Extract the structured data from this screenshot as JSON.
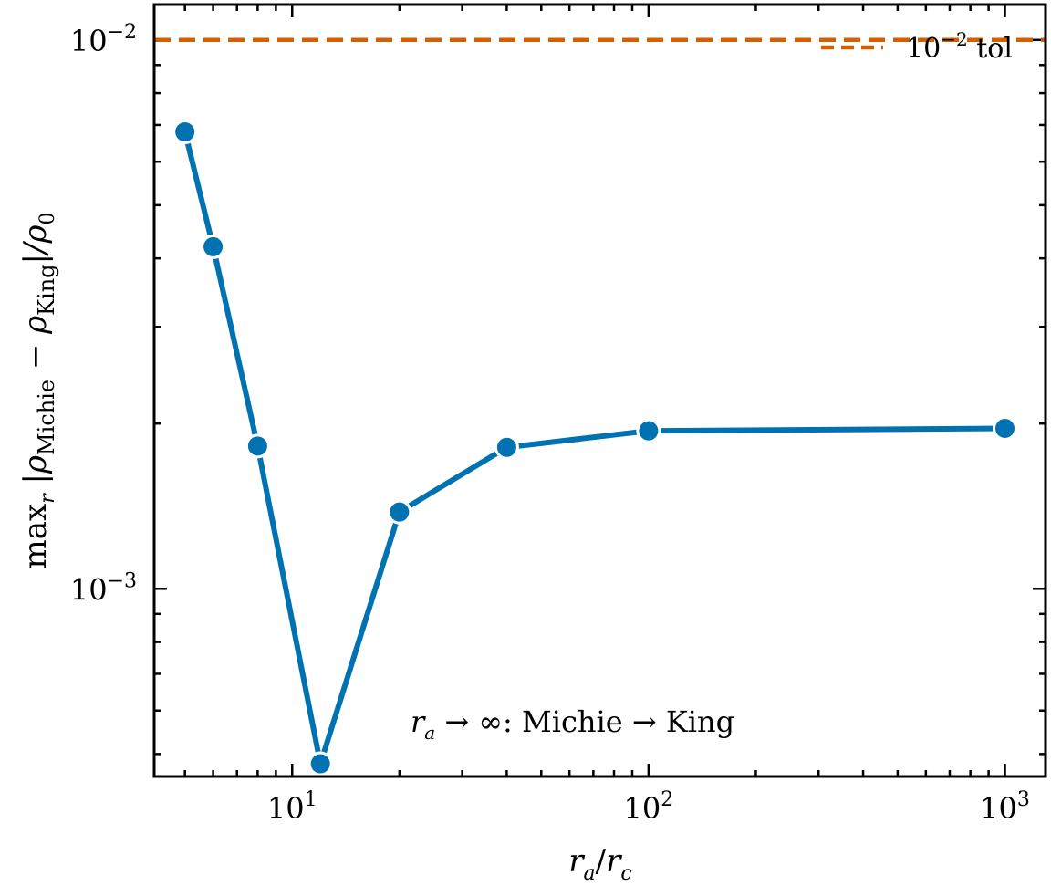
{
  "chart_data": {
    "type": "line",
    "xscale": "log",
    "yscale": "log",
    "xlim": [
      4.1,
      1300
    ],
    "ylim": [
      0.000455,
      0.0116
    ],
    "xlabel": "r_a / r_c",
    "ylabel": "max_r |ρ_Michie − ρ_King| / ρ_0",
    "xticks": [
      {
        "base": "10",
        "exp": "1"
      },
      {
        "base": "10",
        "exp": "2"
      },
      {
        "base": "10",
        "exp": "3"
      }
    ],
    "yticks": [
      {
        "base": "10",
        "exp": "−3"
      },
      {
        "base": "10",
        "exp": "−2"
      }
    ],
    "series": [
      {
        "x": [
          5,
          6,
          8,
          12,
          20,
          40,
          100,
          1000
        ],
        "y": [
          0.0068,
          0.0042,
          0.00182,
          0.00048,
          0.00138,
          0.00181,
          0.00194,
          0.00196
        ],
        "color": "#0072b2"
      }
    ],
    "reference_line": {
      "y": 0.01,
      "color": "#d55e00",
      "style": "dashed",
      "label": "10⁻² tol"
    },
    "annotation": "r_a → ∞: Michie → King",
    "legend": "top-right",
    "grid": false
  }
}
